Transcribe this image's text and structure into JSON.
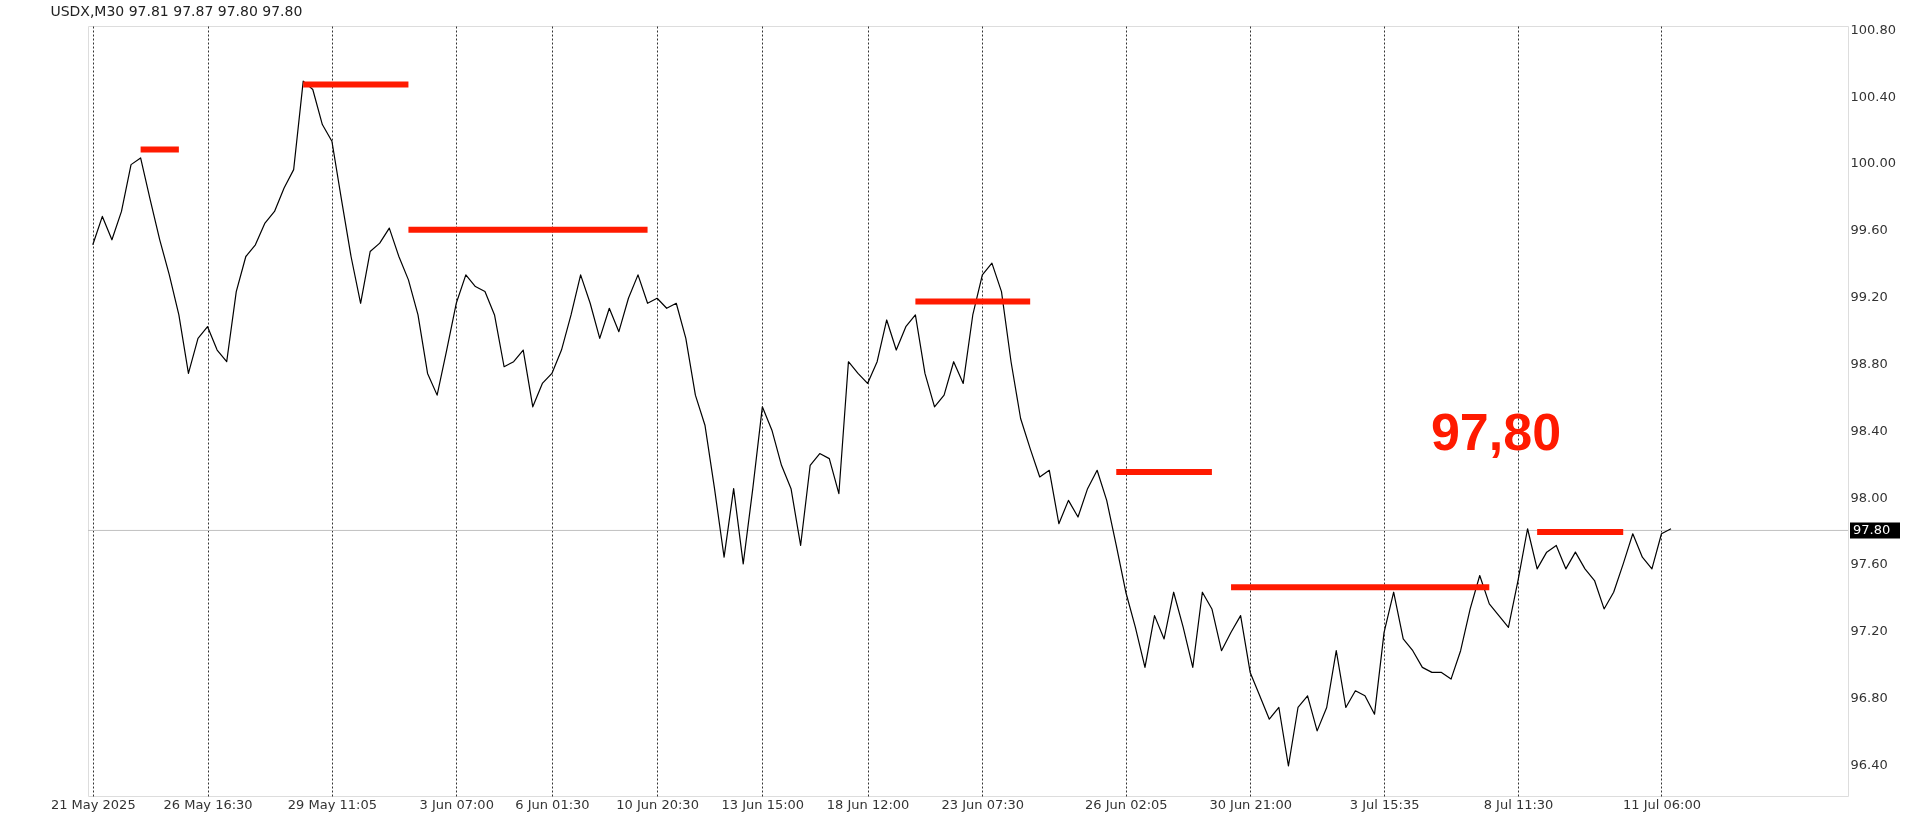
{
  "chart_data": {
    "type": "line",
    "title": "USDX,M30  97.81 97.87 97.80 97.80",
    "categories": [
      "21 May 2025",
      null,
      null,
      null,
      null,
      null,
      null,
      null,
      null,
      null,
      null,
      null,
      "26 May 16:30",
      null,
      null,
      null,
      null,
      null,
      null,
      null,
      null,
      null,
      null,
      null,
      null,
      "29 May 11:05",
      null,
      null,
      null,
      null,
      null,
      null,
      null,
      null,
      null,
      null,
      null,
      null,
      "3 Jun 07:00",
      null,
      null,
      null,
      null,
      null,
      null,
      null,
      null,
      null,
      "6 Jun 01:30",
      null,
      null,
      null,
      null,
      null,
      null,
      null,
      null,
      null,
      null,
      "10 Jun 20:30",
      null,
      null,
      null,
      null,
      null,
      null,
      null,
      null,
      null,
      null,
      "13 Jun 15:00",
      null,
      null,
      null,
      null,
      null,
      null,
      null,
      null,
      null,
      null,
      "18 Jun 12:00",
      null,
      null,
      null,
      null,
      null,
      null,
      null,
      null,
      null,
      null,
      null,
      "23 Jun 07:30",
      null,
      null,
      null,
      null,
      null,
      null,
      null,
      null,
      null,
      null,
      null,
      null,
      null,
      null,
      "26 Jun 02:05",
      null,
      null,
      null,
      null,
      null,
      null,
      null,
      null,
      null,
      null,
      null,
      null,
      "30 Jun 21:00",
      null,
      null,
      null,
      null,
      null,
      null,
      null,
      null,
      null,
      null,
      null,
      null,
      null,
      "3 Jul 15:35",
      null,
      null,
      null,
      null,
      null,
      null,
      null,
      null,
      null,
      null,
      null,
      null,
      null,
      "8 Jul 11:30",
      null,
      null,
      null,
      null,
      null,
      null,
      null,
      null,
      null,
      null,
      null,
      null,
      null,
      null,
      "11 Jul 06:00",
      null,
      null,
      null,
      null,
      null,
      null,
      null,
      null,
      null,
      null,
      null,
      null,
      null,
      null,
      null,
      null,
      null,
      null,
      null
    ],
    "ylim": [
      96.21,
      100.82
    ],
    "yticks": [
      {
        "value": 96.4,
        "label": "96.40"
      },
      {
        "value": 96.8,
        "label": "96.80"
      },
      {
        "value": 97.2,
        "label": "97.20"
      },
      {
        "value": 97.6,
        "label": "97.60"
      },
      {
        "value": 98.0,
        "label": "98.00"
      },
      {
        "value": 98.4,
        "label": "98.40"
      },
      {
        "value": 98.8,
        "label": "98.80"
      },
      {
        "value": 99.2,
        "label": "99.20"
      },
      {
        "value": 99.6,
        "label": "99.60"
      },
      {
        "value": 100.0,
        "label": "100.00"
      },
      {
        "value": 100.4,
        "label": "100.40"
      },
      {
        "value": 100.8,
        "label": "100.80"
      }
    ],
    "grid": "x",
    "marker": "none",
    "line_style": "solid",
    "ref_lines": [
      {
        "axis": "y",
        "value": 97.8,
        "label": "97.80",
        "color": "#c0c0c0"
      }
    ],
    "annotations": [
      "97,80"
    ],
    "series": [
      {
        "color": "#000000",
        "values": [
          99.51,
          99.68,
          99.54,
          99.71,
          99.99,
          100.03,
          99.78,
          99.54,
          99.33,
          99.09,
          98.74,
          98.95,
          99.02,
          98.88,
          98.81,
          99.23,
          99.44,
          99.51,
          99.64,
          99.71,
          99.85,
          99.96,
          100.49,
          100.44,
          100.23,
          100.13,
          99.78,
          99.44,
          99.16,
          99.47,
          99.52,
          99.61,
          99.44,
          99.3,
          99.09,
          98.74,
          98.61,
          98.88,
          99.16,
          99.33,
          99.26,
          99.23,
          99.09,
          98.78,
          98.81,
          98.88,
          98.54,
          98.68,
          98.74,
          98.88,
          99.09,
          99.33,
          99.16,
          98.95,
          99.13,
          98.99,
          99.19,
          99.33,
          99.16,
          99.19,
          99.13,
          99.16,
          98.95,
          98.61,
          98.43,
          98.05,
          97.64,
          98.05,
          97.6,
          98.05,
          98.54,
          98.4,
          98.19,
          98.05,
          97.71,
          98.19,
          98.26,
          98.23,
          98.02,
          98.81,
          98.74,
          98.68,
          98.81,
          99.06,
          98.88,
          99.02,
          99.09,
          98.74,
          98.54,
          98.61,
          98.81,
          98.68,
          99.09,
          99.33,
          99.4,
          99.23,
          98.81,
          98.47,
          98.29,
          98.12,
          98.16,
          97.84,
          97.98,
          97.88,
          98.05,
          98.16,
          97.98,
          97.71,
          97.43,
          97.22,
          96.98,
          97.29,
          97.15,
          97.43,
          97.22,
          96.98,
          97.43,
          97.33,
          97.08,
          97.19,
          97.29,
          96.95,
          96.81,
          96.67,
          96.74,
          96.39,
          96.74,
          96.81,
          96.6,
          96.74,
          97.08,
          96.74,
          96.84,
          96.81,
          96.7,
          97.19,
          97.43,
          97.15,
          97.08,
          96.98,
          96.95,
          96.95,
          96.91,
          97.08,
          97.33,
          97.53,
          97.36,
          97.29,
          97.22,
          97.5,
          97.81,
          97.57,
          97.67,
          97.71,
          97.57,
          97.67,
          97.57,
          97.5,
          97.33,
          97.43,
          97.6,
          97.78,
          97.64,
          97.57,
          97.78,
          97.81,
          null,
          null,
          null,
          null,
          null,
          null,
          null,
          null,
          null,
          null,
          null,
          null,
          null,
          null,
          null,
          null,
          null,
          null
        ]
      },
      {
        "color": "#ff1a00",
        "values": [
          null,
          null,
          null,
          null,
          null,
          100.08,
          100.08,
          100.08,
          100.08,
          100.08,
          null,
          null,
          null,
          null,
          null,
          null,
          null,
          null,
          null,
          null,
          null,
          null,
          null,
          null,
          null,
          null,
          null,
          null,
          null,
          null,
          null,
          null,
          null,
          null,
          null,
          null,
          null,
          null,
          null,
          null,
          null,
          null,
          null,
          null,
          null,
          null,
          null,
          null,
          null,
          null,
          null,
          null,
          null,
          null,
          null,
          null,
          null,
          null,
          null,
          null,
          null,
          null,
          null,
          null,
          null,
          null,
          null,
          null,
          null,
          null,
          null,
          null,
          null,
          null,
          null,
          null,
          null,
          null,
          null,
          null,
          null,
          null,
          null,
          null,
          null,
          null,
          null,
          null,
          null,
          null,
          null,
          null,
          null,
          null,
          null,
          null,
          null,
          null,
          null,
          null,
          null,
          null,
          null,
          null,
          null,
          null,
          null,
          null,
          null,
          null,
          null,
          null,
          null,
          null,
          null,
          null,
          null,
          null,
          null,
          null,
          null,
          null,
          null,
          null,
          null,
          null,
          null,
          null,
          null,
          null,
          null,
          null,
          null,
          null,
          null,
          null,
          null,
          null,
          null,
          null,
          null,
          null,
          null,
          null,
          null,
          null,
          null,
          null,
          null,
          null,
          null,
          null,
          null,
          null,
          null,
          null,
          null,
          null,
          null,
          null,
          null,
          null,
          null,
          null,
          null,
          null,
          null,
          null,
          null,
          null,
          null,
          null,
          null,
          null,
          null,
          null,
          null,
          null,
          null,
          null,
          null,
          null,
          null,
          null
        ]
      },
      {
        "color": "#ff1a00",
        "values": [
          null,
          null,
          null,
          null,
          null,
          null,
          null,
          null,
          null,
          null,
          null,
          null,
          null,
          null,
          null,
          null,
          null,
          null,
          null,
          null,
          null,
          null,
          100.47,
          100.47,
          100.47,
          100.47,
          100.47,
          100.47,
          100.47,
          100.47,
          100.47,
          100.47,
          100.47,
          100.47,
          null,
          null,
          null,
          null,
          null,
          null,
          null,
          null,
          null,
          null,
          null,
          null,
          null,
          null,
          null,
          null,
          null,
          null,
          null,
          null,
          null,
          null,
          null,
          null,
          null,
          null,
          null,
          null,
          null,
          null,
          null,
          null,
          null,
          null,
          null,
          null,
          null,
          null,
          null,
          null,
          null,
          null,
          null,
          null,
          null,
          null,
          null,
          null,
          null,
          null,
          null,
          null,
          null,
          null,
          null,
          null,
          null,
          null,
          null,
          null,
          null,
          null,
          null,
          null,
          null,
          null,
          null,
          null,
          null,
          null,
          null,
          null,
          null,
          null,
          null,
          null,
          null,
          null,
          null,
          null,
          null,
          null,
          null,
          null,
          null,
          null,
          null,
          null,
          null,
          null,
          null,
          null,
          null,
          null,
          null,
          null,
          null,
          null,
          null,
          null,
          null,
          null,
          null,
          null,
          null,
          null,
          null,
          null,
          null,
          null,
          null,
          null,
          null,
          null,
          null,
          null,
          null,
          null,
          null,
          null,
          null,
          null,
          null,
          null,
          null,
          null,
          null,
          null,
          null,
          null,
          null,
          null,
          null,
          null,
          null,
          null,
          null,
          null,
          null,
          null,
          null,
          null,
          null,
          null,
          null,
          null,
          null,
          null,
          null,
          null
        ]
      },
      {
        "color": "#ff1a00",
        "values": [
          null,
          null,
          null,
          null,
          null,
          null,
          null,
          null,
          null,
          null,
          null,
          null,
          null,
          null,
          null,
          null,
          null,
          null,
          null,
          null,
          null,
          null,
          null,
          null,
          null,
          null,
          null,
          null,
          null,
          null,
          null,
          null,
          null,
          99.6,
          99.6,
          99.6,
          99.6,
          99.6,
          99.6,
          99.6,
          99.6,
          99.6,
          99.6,
          99.6,
          99.6,
          99.6,
          99.6,
          99.6,
          99.6,
          99.6,
          99.6,
          99.6,
          99.6,
          99.6,
          99.6,
          99.6,
          99.6,
          99.6,
          99.6,
          null,
          null,
          null,
          null,
          null,
          null,
          null,
          null,
          null,
          null,
          null,
          null,
          null,
          null,
          null,
          null,
          null,
          null,
          null,
          null,
          null,
          null,
          null,
          null,
          null,
          null,
          null,
          null,
          null,
          null,
          null,
          null,
          null,
          null,
          null,
          null,
          null,
          null,
          null,
          null,
          null,
          null,
          null,
          null,
          null,
          null,
          null,
          null,
          null,
          null,
          null,
          null,
          null,
          null,
          null,
          null,
          null,
          null,
          null,
          null,
          null,
          null,
          null,
          null,
          null,
          null,
          null,
          null,
          null,
          null,
          null,
          null,
          null,
          null,
          null,
          null,
          null,
          null,
          null,
          null,
          null,
          null,
          null,
          null,
          null,
          null,
          null,
          null,
          null,
          null,
          null,
          null,
          null,
          null,
          null,
          null,
          null,
          null,
          null,
          null,
          null,
          null,
          null,
          null,
          null,
          null,
          null,
          null,
          null,
          null,
          null,
          null,
          null,
          null,
          null,
          null,
          null,
          null,
          null,
          null,
          null,
          null,
          null,
          null,
          null
        ]
      },
      {
        "color": "#ff1a00",
        "values": [
          null,
          null,
          null,
          null,
          null,
          null,
          null,
          null,
          null,
          null,
          null,
          null,
          null,
          null,
          null,
          null,
          null,
          null,
          null,
          null,
          null,
          null,
          null,
          null,
          null,
          null,
          null,
          null,
          null,
          null,
          null,
          null,
          null,
          null,
          null,
          null,
          null,
          null,
          null,
          null,
          null,
          null,
          null,
          null,
          null,
          null,
          null,
          null,
          null,
          null,
          null,
          null,
          null,
          null,
          null,
          null,
          null,
          null,
          null,
          null,
          null,
          null,
          null,
          null,
          null,
          null,
          null,
          null,
          null,
          null,
          null,
          null,
          null,
          null,
          null,
          null,
          null,
          null,
          null,
          null,
          null,
          null,
          null,
          null,
          null,
          null,
          99.17,
          99.17,
          99.17,
          99.17,
          99.17,
          99.17,
          99.17,
          99.17,
          99.17,
          99.17,
          99.17,
          99.17,
          99.17,
          null,
          null,
          null,
          null,
          null,
          null,
          null,
          null,
          null,
          null,
          null,
          null,
          null,
          null,
          null,
          null,
          null,
          null,
          null,
          null,
          null,
          null,
          null,
          null,
          null,
          null,
          null,
          null,
          null,
          null,
          null,
          null,
          null,
          null,
          null,
          null,
          null,
          null,
          null,
          null,
          null,
          null,
          null,
          null,
          null,
          null,
          null,
          null,
          null,
          null,
          null,
          null,
          null,
          null,
          null,
          null,
          null,
          null,
          null,
          null,
          null,
          null,
          null,
          null,
          null,
          null,
          null,
          null,
          null,
          null,
          null,
          null,
          null,
          null,
          null,
          null,
          null,
          null,
          null,
          null,
          null,
          null,
          null,
          null,
          null
        ]
      },
      {
        "color": "#ff1a00",
        "values": [
          null,
          null,
          null,
          null,
          null,
          null,
          null,
          null,
          null,
          null,
          null,
          null,
          null,
          null,
          null,
          null,
          null,
          null,
          null,
          null,
          null,
          null,
          null,
          null,
          null,
          null,
          null,
          null,
          null,
          null,
          null,
          null,
          null,
          null,
          null,
          null,
          null,
          null,
          null,
          null,
          null,
          null,
          null,
          null,
          null,
          null,
          null,
          null,
          null,
          null,
          null,
          null,
          null,
          null,
          null,
          null,
          null,
          null,
          null,
          null,
          null,
          null,
          null,
          null,
          null,
          null,
          null,
          null,
          null,
          null,
          null,
          null,
          null,
          null,
          null,
          null,
          null,
          null,
          null,
          null,
          null,
          null,
          null,
          null,
          null,
          null,
          null,
          null,
          null,
          null,
          null,
          null,
          null,
          null,
          null,
          null,
          null,
          null,
          null,
          null,
          null,
          null,
          null,
          null,
          null,
          null,
          null,
          98.15,
          98.15,
          98.15,
          98.15,
          98.15,
          98.15,
          98.15,
          98.15,
          98.15,
          98.15,
          98.15,
          null,
          null,
          null,
          null,
          null,
          null,
          null,
          null,
          null,
          null,
          null,
          null,
          null,
          null,
          null,
          null,
          null,
          null,
          null,
          null,
          null,
          null,
          null,
          null,
          null,
          null,
          null,
          null,
          null,
          null,
          null,
          null,
          null,
          null,
          null,
          null,
          null,
          null,
          null,
          null,
          null,
          null,
          null,
          null,
          null,
          null,
          null,
          null,
          null,
          null,
          null,
          null,
          null,
          null,
          null,
          null,
          null,
          null,
          null,
          null,
          null,
          null,
          null,
          null,
          null,
          null
        ]
      },
      {
        "color": "#ff1a00",
        "values": [
          null,
          null,
          null,
          null,
          null,
          null,
          null,
          null,
          null,
          null,
          null,
          null,
          null,
          null,
          null,
          null,
          null,
          null,
          null,
          null,
          null,
          null,
          null,
          null,
          null,
          null,
          null,
          null,
          null,
          null,
          null,
          null,
          null,
          null,
          null,
          null,
          null,
          null,
          null,
          null,
          null,
          null,
          null,
          null,
          null,
          null,
          null,
          null,
          null,
          null,
          null,
          null,
          null,
          null,
          null,
          null,
          null,
          null,
          null,
          null,
          null,
          null,
          null,
          null,
          null,
          null,
          null,
          null,
          null,
          null,
          null,
          null,
          null,
          null,
          null,
          null,
          null,
          null,
          null,
          null,
          null,
          null,
          null,
          null,
          null,
          null,
          null,
          null,
          null,
          null,
          null,
          null,
          null,
          null,
          null,
          null,
          null,
          null,
          null,
          null,
          null,
          null,
          null,
          null,
          null,
          null,
          null,
          null,
          null,
          null,
          null,
          null,
          null,
          null,
          null,
          null,
          null,
          null,
          null,
          97.46,
          97.46,
          97.46,
          97.46,
          97.46,
          97.46,
          97.46,
          97.46,
          97.46,
          97.46,
          97.46,
          97.46,
          97.46,
          97.46,
          97.46,
          97.46,
          97.46,
          97.46,
          97.46,
          97.46,
          97.46,
          97.46,
          97.46,
          97.46,
          97.46,
          97.46,
          97.46,
          97.46,
          null,
          null,
          null,
          null,
          null,
          null,
          null,
          null,
          null,
          null,
          null,
          null,
          null,
          null,
          null,
          null,
          null,
          null,
          null,
          null,
          null,
          null,
          null,
          null,
          null,
          null,
          null,
          null,
          null,
          null,
          null,
          null,
          null,
          null,
          null,
          null,
          null
        ]
      },
      {
        "color": "#ff1a00",
        "values": [
          null,
          null,
          null,
          null,
          null,
          null,
          null,
          null,
          null,
          null,
          null,
          null,
          null,
          null,
          null,
          null,
          null,
          null,
          null,
          null,
          null,
          null,
          null,
          null,
          null,
          null,
          null,
          null,
          null,
          null,
          null,
          null,
          null,
          null,
          null,
          null,
          null,
          null,
          null,
          null,
          null,
          null,
          null,
          null,
          null,
          null,
          null,
          null,
          null,
          null,
          null,
          null,
          null,
          null,
          null,
          null,
          null,
          null,
          null,
          null,
          null,
          null,
          null,
          null,
          null,
          null,
          null,
          null,
          null,
          null,
          null,
          null,
          null,
          null,
          null,
          null,
          null,
          null,
          null,
          null,
          null,
          null,
          null,
          null,
          null,
          null,
          null,
          null,
          null,
          null,
          null,
          null,
          null,
          null,
          null,
          null,
          null,
          null,
          null,
          null,
          null,
          null,
          null,
          null,
          null,
          null,
          null,
          null,
          null,
          null,
          null,
          null,
          null,
          null,
          null,
          null,
          null,
          null,
          null,
          null,
          null,
          null,
          null,
          null,
          null,
          null,
          null,
          null,
          null,
          null,
          null,
          null,
          null,
          null,
          null,
          null,
          null,
          null,
          null,
          null,
          null,
          null,
          null,
          null,
          null,
          null,
          null,
          null,
          null,
          null,
          null,
          97.79,
          97.79,
          97.79,
          97.79,
          97.79,
          97.79,
          97.79,
          97.79,
          97.79,
          97.79,
          null,
          null,
          null,
          null,
          null,
          null,
          null,
          null,
          null,
          null,
          null,
          null,
          null,
          null,
          null,
          null,
          null,
          null,
          null,
          null,
          null,
          null,
          null
        ]
      }
    ]
  }
}
